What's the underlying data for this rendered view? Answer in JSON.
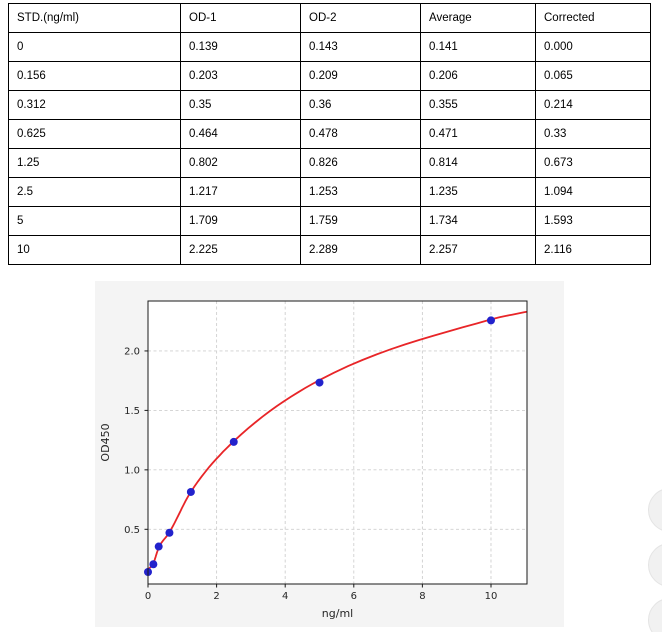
{
  "table": {
    "headers": [
      "STD.(ng/ml)",
      "OD-1",
      "OD-2",
      "Average",
      "Corrected"
    ],
    "rows": [
      [
        "0",
        "0.139",
        "0.143",
        "0.141",
        "0.000"
      ],
      [
        "0.156",
        "0.203",
        "0.209",
        "0.206",
        "0.065"
      ],
      [
        "0.312",
        "0.35",
        "0.36",
        "0.355",
        "0.214"
      ],
      [
        "0.625",
        "0.464",
        "0.478",
        "0.471",
        "0.33"
      ],
      [
        "1.25",
        "0.802",
        "0.826",
        "0.814",
        "0.673"
      ],
      [
        "2.5",
        "1.217",
        "1.253",
        "1.235",
        "1.094"
      ],
      [
        "5",
        "1.709",
        "1.759",
        "1.734",
        "1.593"
      ],
      [
        "10",
        "2.225",
        "2.289",
        "2.257",
        "2.116"
      ]
    ]
  },
  "chart_data": {
    "type": "scatter",
    "title": "",
    "xlabel": "ng/ml",
    "ylabel": "OD450",
    "x": [
      0,
      0.156,
      0.312,
      0.625,
      1.25,
      2.5,
      5,
      10
    ],
    "y": [
      0.141,
      0.206,
      0.355,
      0.471,
      0.814,
      1.235,
      1.734,
      2.257
    ],
    "fit_curve": [
      [
        0,
        0.16
      ],
      [
        0.156,
        0.215
      ],
      [
        0.312,
        0.345
      ],
      [
        0.625,
        0.475
      ],
      [
        1.25,
        0.815
      ],
      [
        2.5,
        1.24
      ],
      [
        5,
        1.755
      ],
      [
        10,
        2.265
      ],
      [
        11.05,
        2.33
      ]
    ],
    "xlim": [
      0,
      11.05
    ],
    "ylim": [
      0.04,
      2.42
    ],
    "xticks": [
      0,
      2,
      4,
      6,
      8,
      10
    ],
    "xtick_labels": [
      "0",
      "2",
      "4",
      "6",
      "8",
      "10"
    ],
    "yticks": [
      0.5,
      1.0,
      1.5,
      2.0
    ],
    "ytick_labels": [
      "0.5",
      "1.0",
      "1.5",
      "2.0"
    ],
    "grid": true,
    "grid_style": "dashed",
    "legend": "none",
    "colors": {
      "curve": "#e82528",
      "points": "#2222cc",
      "grid": "#cfcfcf",
      "spine": "#1a1a1a",
      "plot_bg": "#ffffff",
      "figure_bg": "#f4f4f4",
      "tick_text": "#262626"
    }
  },
  "floating_buttons": {
    "count": 3,
    "fill": "#f1f1f1",
    "border": "#e4e4e4"
  }
}
